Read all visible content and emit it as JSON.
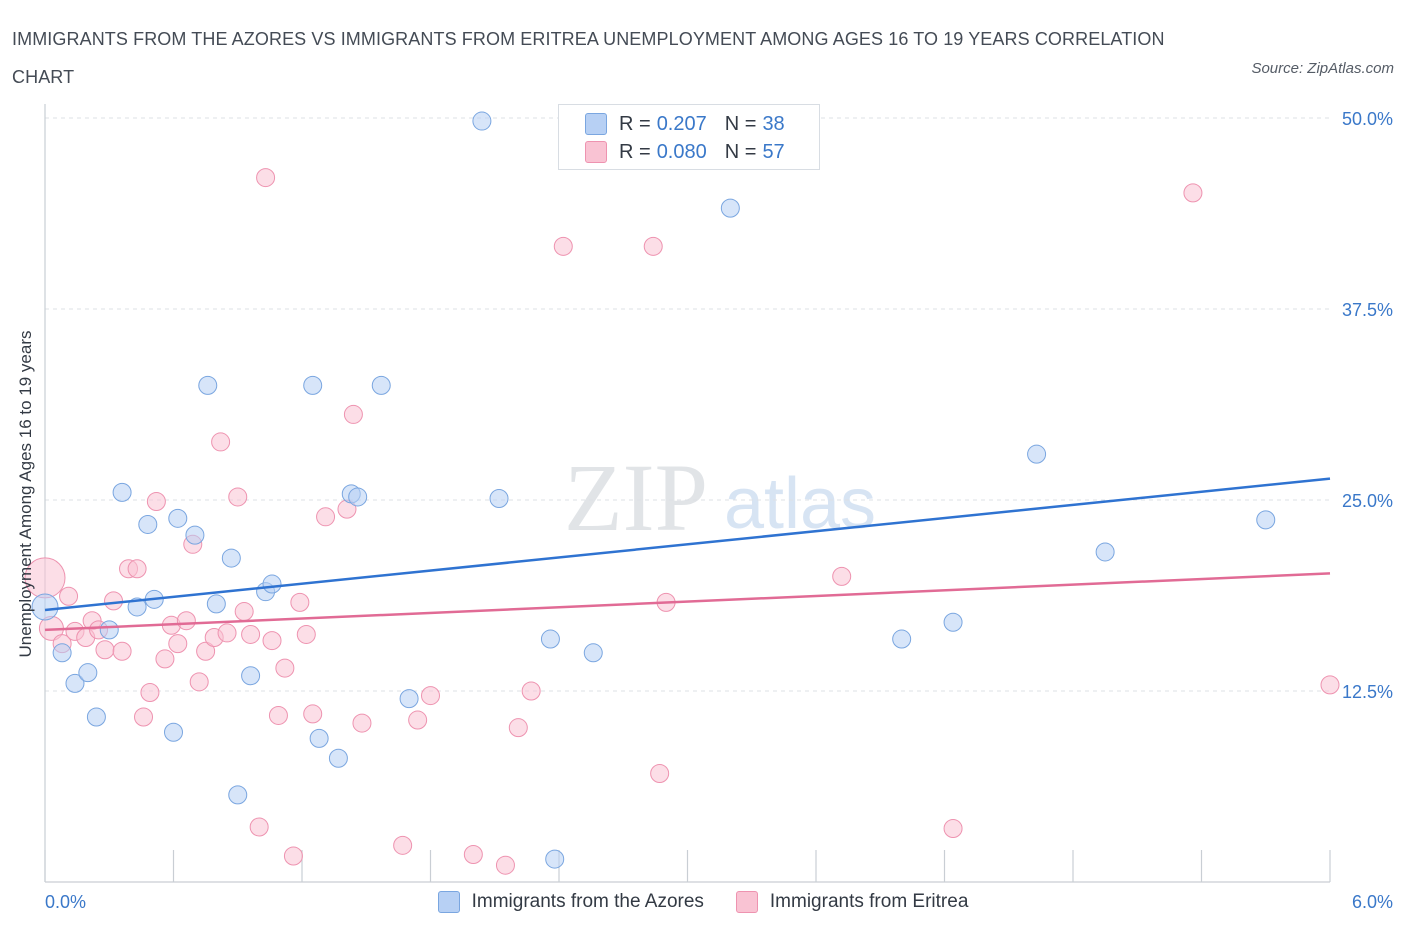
{
  "title": "IMMIGRANTS FROM THE AZORES VS IMMIGRANTS FROM ERITREA UNEMPLOYMENT AMONG AGES 16 TO 19 YEARS CORRELATION CHART",
  "source": "Source: ZipAtlas.com",
  "watermark": {
    "zip": "ZIP",
    "atlas": "atlas"
  },
  "legend_top": {
    "rows": [
      {
        "r_label": "R =",
        "r_value": "0.207",
        "n_label": "N =",
        "n_value": "38"
      },
      {
        "r_label": "R =",
        "r_value": "0.080",
        "n_label": "N =",
        "n_value": "57"
      }
    ]
  },
  "colors": {
    "azores_fill": "#b7d0f4",
    "azores_stroke": "#7aa6e0",
    "azores_line": "#2f73d1",
    "eritrea_fill": "#f9c3d3",
    "eritrea_stroke": "#ee93b0",
    "eritrea_line": "#e16b95",
    "axis_text": "#3a78c9",
    "grid": "#dde1e6"
  },
  "chart_data": {
    "type": "scatter",
    "title": "IMMIGRANTS FROM THE AZORES VS IMMIGRANTS FROM ERITREA UNEMPLOYMENT AMONG AGES 16 TO 19 YEARS CORRELATION CHART",
    "xlabel": "",
    "ylabel": "Unemployment Among Ages 16 to 19 years",
    "xlim": [
      0,
      6
    ],
    "ylim": [
      0,
      50
    ],
    "x_tick_labels": [
      {
        "value": 0,
        "label": "0.0%"
      },
      {
        "value": 6,
        "label": "6.0%"
      }
    ],
    "y_tick_labels": [
      {
        "value": 12.5,
        "label": "12.5%"
      },
      {
        "value": 25,
        "label": "25.0%"
      },
      {
        "value": 37.5,
        "label": "37.5%"
      },
      {
        "value": 50,
        "label": "50.0%"
      }
    ],
    "legend_placement": "bottom-center",
    "series": [
      {
        "name": "Immigrants from the Azores",
        "R": 0.207,
        "N": 38,
        "trend": [
          [
            0,
            17.8
          ],
          [
            6,
            26.4
          ]
        ],
        "points": [
          [
            0.0,
            18.0
          ],
          [
            0.08,
            15.0
          ],
          [
            0.14,
            13.0
          ],
          [
            0.2,
            13.7
          ],
          [
            0.24,
            10.8
          ],
          [
            0.3,
            16.5
          ],
          [
            0.36,
            25.5
          ],
          [
            0.43,
            18.0
          ],
          [
            0.48,
            23.4
          ],
          [
            0.51,
            18.5
          ],
          [
            0.6,
            9.8
          ],
          [
            0.62,
            23.8
          ],
          [
            0.7,
            22.7
          ],
          [
            0.76,
            32.5
          ],
          [
            0.8,
            18.2
          ],
          [
            0.87,
            21.2
          ],
          [
            0.9,
            5.7
          ],
          [
            0.96,
            13.5
          ],
          [
            1.03,
            19.0
          ],
          [
            1.06,
            19.5
          ],
          [
            1.25,
            32.5
          ],
          [
            1.28,
            9.4
          ],
          [
            1.37,
            8.1
          ],
          [
            1.43,
            25.4
          ],
          [
            1.46,
            25.2
          ],
          [
            1.57,
            32.5
          ],
          [
            1.7,
            12.0
          ],
          [
            2.04,
            49.8
          ],
          [
            2.12,
            25.1
          ],
          [
            2.36,
            15.9
          ],
          [
            2.38,
            1.5
          ],
          [
            2.56,
            15.0
          ],
          [
            3.2,
            44.1
          ],
          [
            4.0,
            15.9
          ],
          [
            4.24,
            17.0
          ],
          [
            4.63,
            28.0
          ],
          [
            4.95,
            21.6
          ],
          [
            5.7,
            23.7
          ]
        ]
      },
      {
        "name": "Immigrants from Eritrea",
        "R": 0.08,
        "N": 57,
        "trend": [
          [
            0,
            16.5
          ],
          [
            6,
            20.2
          ]
        ],
        "points": [
          [
            0.0,
            19.9
          ],
          [
            0.03,
            16.6
          ],
          [
            0.08,
            15.6
          ],
          [
            0.11,
            18.7
          ],
          [
            0.14,
            16.4
          ],
          [
            0.19,
            16.0
          ],
          [
            0.22,
            17.1
          ],
          [
            0.25,
            16.5
          ],
          [
            0.28,
            15.2
          ],
          [
            0.32,
            18.4
          ],
          [
            0.36,
            15.1
          ],
          [
            0.39,
            20.5
          ],
          [
            0.43,
            20.5
          ],
          [
            0.46,
            10.8
          ],
          [
            0.49,
            12.4
          ],
          [
            0.52,
            24.9
          ],
          [
            0.56,
            14.6
          ],
          [
            0.59,
            16.8
          ],
          [
            0.62,
            15.6
          ],
          [
            0.66,
            17.1
          ],
          [
            0.69,
            22.1
          ],
          [
            0.72,
            13.1
          ],
          [
            0.75,
            15.1
          ],
          [
            0.79,
            16.0
          ],
          [
            0.82,
            28.8
          ],
          [
            0.85,
            16.3
          ],
          [
            0.9,
            25.2
          ],
          [
            0.93,
            17.7
          ],
          [
            0.96,
            16.2
          ],
          [
            1.0,
            3.6
          ],
          [
            1.03,
            46.1
          ],
          [
            1.06,
            15.8
          ],
          [
            1.09,
            10.9
          ],
          [
            1.12,
            14.0
          ],
          [
            1.16,
            1.7
          ],
          [
            1.19,
            18.3
          ],
          [
            1.22,
            16.2
          ],
          [
            1.25,
            11.0
          ],
          [
            1.31,
            23.9
          ],
          [
            1.41,
            24.4
          ],
          [
            1.44,
            30.6
          ],
          [
            1.48,
            10.4
          ],
          [
            1.67,
            2.4
          ],
          [
            1.74,
            10.6
          ],
          [
            1.8,
            12.2
          ],
          [
            2.0,
            1.8
          ],
          [
            2.15,
            1.1
          ],
          [
            2.21,
            10.1
          ],
          [
            2.27,
            12.5
          ],
          [
            2.42,
            41.6
          ],
          [
            2.84,
            41.6
          ],
          [
            2.87,
            7.1
          ],
          [
            2.9,
            18.3
          ],
          [
            3.72,
            20.0
          ],
          [
            4.24,
            3.5
          ],
          [
            5.36,
            45.1
          ],
          [
            6.0,
            12.9
          ]
        ]
      }
    ]
  }
}
